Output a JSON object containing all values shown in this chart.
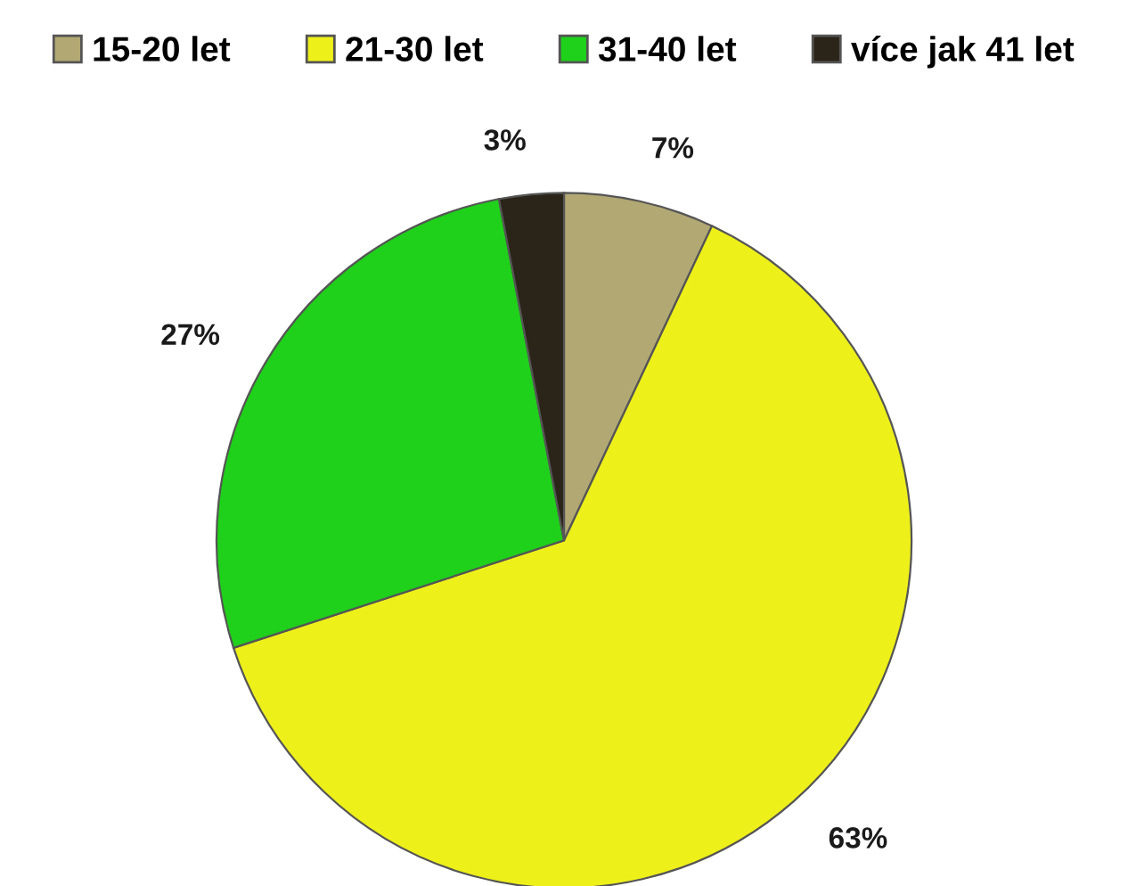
{
  "chart_data": {
    "type": "pie",
    "categories": [
      "15-20 let",
      "21-30 let",
      "31-40 let",
      "více jak 41 let"
    ],
    "values": [
      7,
      63,
      27,
      3
    ],
    "value_labels": [
      "7%",
      "63%",
      "27%",
      "3%"
    ],
    "colors": [
      "#b2a874",
      "#eef01a",
      "#1fd11a",
      "#2b2419"
    ],
    "legend": "top"
  }
}
